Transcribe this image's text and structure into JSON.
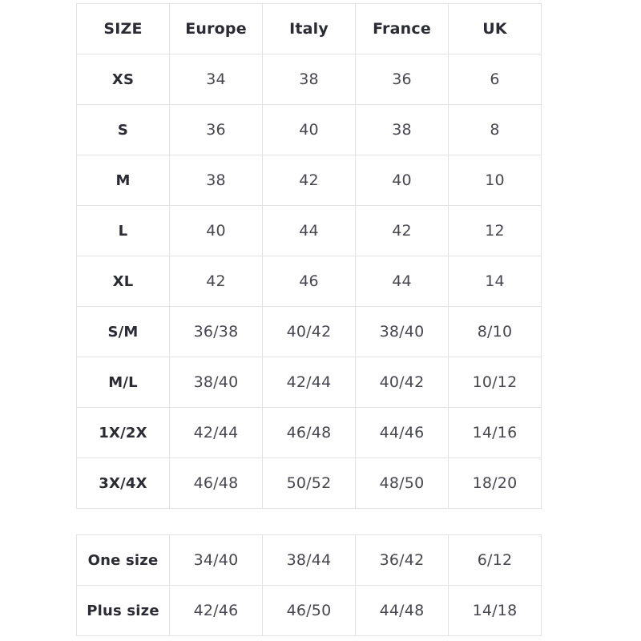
{
  "colors": {
    "background": "#ffffff",
    "border": "#e2e2e4",
    "header_text": "#2b2b33",
    "value_text": "#47474f"
  },
  "chart_data": [
    {
      "type": "table",
      "title": "Size conversion table (main sizes)",
      "columns": [
        "SIZE",
        "Europe",
        "Italy",
        "France",
        "UK"
      ],
      "rows": [
        {
          "size": "XS",
          "values": [
            "34",
            "38",
            "36",
            "6"
          ]
        },
        {
          "size": "S",
          "values": [
            "36",
            "40",
            "38",
            "8"
          ]
        },
        {
          "size": "M",
          "values": [
            "38",
            "42",
            "40",
            "10"
          ]
        },
        {
          "size": "L",
          "values": [
            "40",
            "44",
            "42",
            "12"
          ]
        },
        {
          "size": "XL",
          "values": [
            "42",
            "46",
            "44",
            "14"
          ]
        },
        {
          "size": "S/M",
          "values": [
            "36/38",
            "40/42",
            "38/40",
            "8/10"
          ]
        },
        {
          "size": "M/L",
          "values": [
            "38/40",
            "42/44",
            "40/42",
            "10/12"
          ]
        },
        {
          "size": "1X/2X",
          "values": [
            "42/44",
            "46/48",
            "44/46",
            "14/16"
          ]
        },
        {
          "size": "3X/4X",
          "values": [
            "46/48",
            "50/52",
            "48/50",
            "18/20"
          ]
        }
      ]
    },
    {
      "type": "table",
      "title": "Size conversion table (special sizes)",
      "columns": [],
      "rows": [
        {
          "size": "One size",
          "values": [
            "34/40",
            "38/44",
            "36/42",
            "6/12"
          ]
        },
        {
          "size": "Plus size",
          "values": [
            "42/46",
            "46/50",
            "44/48",
            "14/18"
          ]
        }
      ]
    }
  ]
}
